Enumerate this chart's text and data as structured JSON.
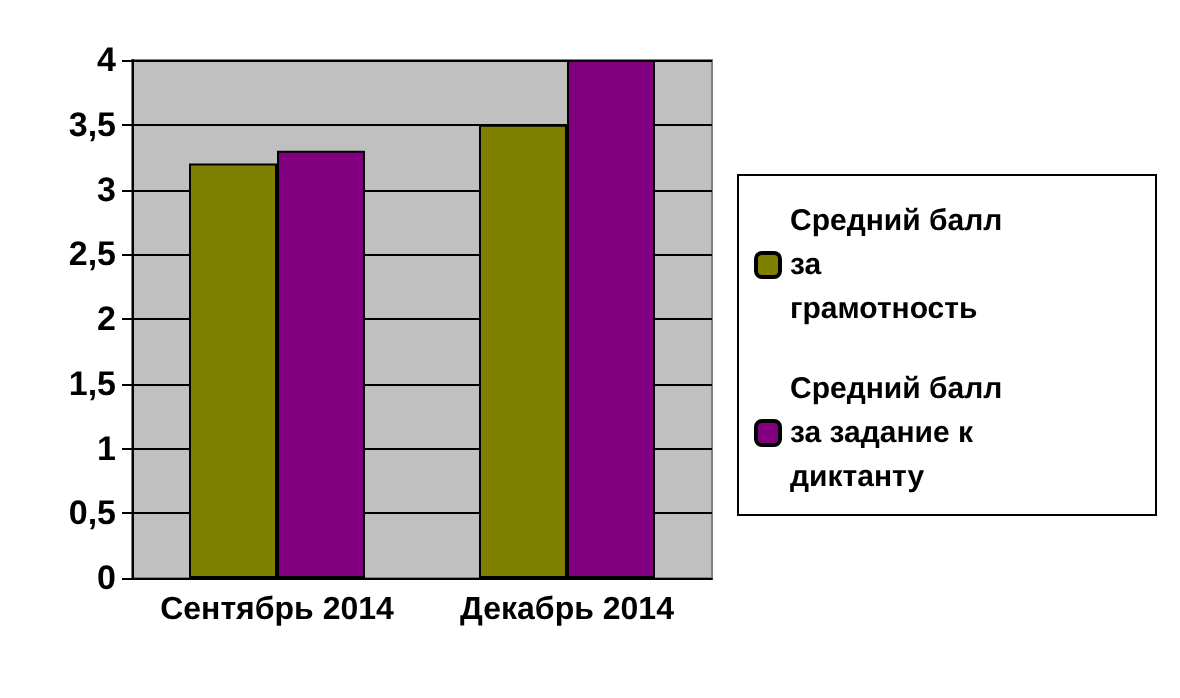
{
  "chart_data": {
    "type": "bar",
    "categories": [
      "Сентябрь 2014",
      "Декабрь 2014"
    ],
    "series": [
      {
        "name": "Средний балл за грамотность",
        "color": "#808000",
        "values": [
          3.2,
          3.5
        ]
      },
      {
        "name": "Средний балл за задание к диктанту",
        "color": "#800080",
        "values": [
          3.3,
          4.0
        ]
      }
    ],
    "ylim": [
      0,
      4
    ],
    "yticks": [
      0,
      {
        "value": 0.5,
        "label": "0,5"
      },
      1,
      {
        "value": 1.5,
        "label": "1,5"
      },
      2,
      {
        "value": 2.5,
        "label": "2,5"
      },
      3,
      {
        "value": 3.5,
        "label": "3,5"
      },
      4
    ],
    "grid": "y",
    "legend": "right"
  }
}
